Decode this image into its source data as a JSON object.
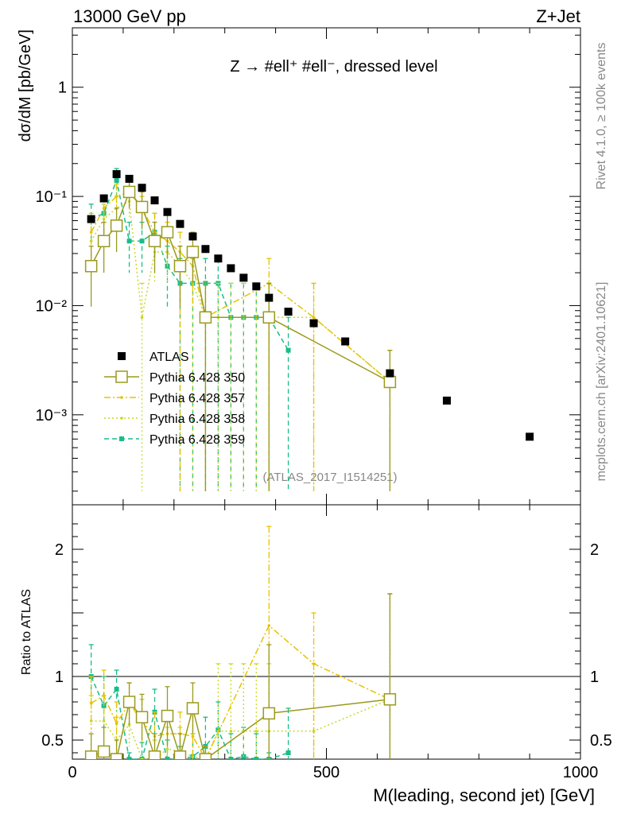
{
  "header": {
    "left_label": "13000 GeV pp",
    "right_label": "Z+Jet"
  },
  "side_labels": {
    "rivet": "Rivet 4.1.0, ≥ 100k events",
    "mcplots": "mcplots.cern.ch [arXiv:2401.10621]"
  },
  "chart_data": {
    "type": "scatter",
    "title": "Z → #ell⁺ #ell⁻, dressed level",
    "analysis_id": "(ATLAS_2017_I1514251)",
    "xlabel": "M(leading, second jet) [GeV]",
    "ylabel": "dσ/dM [pb/GeV]",
    "ratio_ylabel": "Ratio to ATLAS",
    "xlim": [
      0,
      1000
    ],
    "ylim": [
      0.00015,
      3.5
    ],
    "ratio_ylim": [
      0.35,
      2.35
    ],
    "x_ticks": [
      "0",
      "500",
      "1000"
    ],
    "y_ticks": [
      "1",
      "10⁻¹",
      "10⁻²",
      "10⁻³"
    ],
    "ratio_y_ticks": [
      "0.5",
      "1",
      "2"
    ],
    "legend": [
      "ATLAS",
      "Pythia 6.428 350",
      "Pythia 6.428 357",
      "Pythia 6.428 358",
      "Pythia 6.428 359"
    ],
    "reference": {
      "name": "ATLAS",
      "color": "#000000",
      "x": [
        37,
        62,
        87,
        112,
        137,
        162,
        187,
        212,
        237,
        262,
        287,
        312,
        337,
        362,
        387,
        425,
        475,
        537,
        625,
        737,
        900
      ],
      "y": [
        0.062,
        0.096,
        0.16,
        0.145,
        0.12,
        0.092,
        0.072,
        0.056,
        0.043,
        0.033,
        0.027,
        0.022,
        0.018,
        0.015,
        0.0118,
        0.0088,
        0.0069,
        0.0047,
        0.0024,
        0.00135,
        0.00063
      ]
    },
    "series": [
      {
        "name": "Pythia 6.428 350",
        "color": "#9a9a1e",
        "style": "solid",
        "marker": "open-square",
        "x": [
          37,
          62,
          87,
          112,
          137,
          162,
          187,
          212,
          237,
          262,
          387,
          625
        ],
        "y": [
          0.023,
          0.039,
          0.054,
          0.11,
          0.08,
          0.039,
          0.047,
          0.023,
          0.031,
          0.0078,
          0.0078,
          0.002
        ],
        "err_hi": [
          0.035,
          0.058,
          0.078,
          0.14,
          0.11,
          0.058,
          0.069,
          0.035,
          0.047,
          0.016,
          0.016,
          0.0039
        ],
        "err_lo": [
          0.0098,
          0.02,
          0.031,
          0.078,
          0.05,
          0.02,
          0.027,
          0.0098,
          0.016,
          0.0002,
          0.0002,
          0.0002
        ],
        "ratio": [
          0.37,
          0.41,
          0.34,
          0.8,
          0.68,
          0.37,
          0.69,
          0.37,
          0.75,
          0.23,
          0.71,
          0.82
        ],
        "ratio_err_hi": [
          0.55,
          0.6,
          0.5,
          0.95,
          0.86,
          0.55,
          0.92,
          0.55,
          0.95,
          0.45,
          1.25,
          1.65
        ],
        "ratio_err_lo": [
          0.2,
          0.2,
          0.18,
          0.62,
          0.5,
          0.2,
          0.45,
          0.2,
          0.55,
          0.01,
          0.15,
          0.01
        ]
      },
      {
        "name": "Pythia 6.428 357",
        "color": "#e6c300",
        "style": "dashdot",
        "marker": "dot",
        "x": [
          37,
          62,
          87,
          112,
          137,
          162,
          187,
          212,
          237,
          262,
          387,
          475,
          625
        ],
        "y": [
          0.047,
          0.078,
          0.1,
          0.11,
          0.078,
          0.047,
          0.039,
          0.031,
          0.023,
          0.0078,
          0.016,
          0.0078,
          0.002
        ],
        "err_hi": [
          0.07,
          0.1,
          0.13,
          0.14,
          0.1,
          0.07,
          0.058,
          0.047,
          0.035,
          0.016,
          0.027,
          0.016,
          0.0039
        ],
        "err_lo": [
          0.027,
          0.055,
          0.075,
          0.08,
          0.055,
          0.027,
          0.02,
          0.0002,
          0.0098,
          0.0002,
          0.0002,
          0.0002,
          0.0002
        ],
        "ratio": [
          0.79,
          0.85,
          0.63,
          0.79,
          0.65,
          0.53,
          0.55,
          0.55,
          0.53,
          0.23,
          1.4,
          1.1,
          0.82
        ],
        "ratio_err_hi": [
          1.0,
          1.05,
          0.8,
          0.95,
          0.82,
          0.72,
          0.72,
          0.72,
          0.72,
          0.45,
          2.18,
          1.5,
          1.65
        ],
        "ratio_err_lo": [
          0.58,
          0.65,
          0.45,
          0.62,
          0.48,
          0.35,
          0.38,
          0.38,
          0.35,
          0.01,
          0.6,
          0.3,
          0.01
        ]
      },
      {
        "name": "Pythia 6.428 358",
        "color": "#c8d82a",
        "style": "dotted",
        "marker": "dot",
        "x": [
          37,
          62,
          87,
          112,
          137,
          162,
          187,
          212,
          237,
          262,
          287,
          312,
          337,
          362,
          387,
          475,
          625
        ],
        "y": [
          0.039,
          0.062,
          0.078,
          0.09,
          0.0078,
          0.031,
          0.031,
          0.023,
          0.016,
          0.0078,
          0.0078,
          0.0078,
          0.0078,
          0.0078,
          0.0078,
          0.0078,
          0.002
        ],
        "err_hi": [
          0.058,
          0.085,
          0.1,
          0.12,
          0.016,
          0.047,
          0.047,
          0.035,
          0.027,
          0.016,
          0.016,
          0.016,
          0.016,
          0.016,
          0.016,
          0.016,
          0.0039
        ],
        "err_lo": [
          0.02,
          0.04,
          0.055,
          0.065,
          0.0002,
          0.016,
          0.016,
          0.0098,
          0.0002,
          0.0002,
          0.0002,
          0.0002,
          0.0002,
          0.0002,
          0.0002,
          0.0002,
          0.0002
        ],
        "ratio": [
          0.65,
          0.65,
          0.5,
          0.62,
          0.07,
          0.34,
          0.43,
          0.41,
          0.37,
          0.24,
          0.57,
          0.57,
          0.57,
          0.57,
          0.57,
          0.57,
          0.82
        ],
        "ratio_err_hi": [
          0.85,
          0.85,
          0.68,
          0.8,
          0.2,
          0.5,
          0.6,
          0.6,
          0.55,
          0.45,
          1.1,
          1.1,
          1.1,
          1.1,
          1.1,
          1.1,
          1.65
        ],
        "ratio_err_lo": [
          0.45,
          0.45,
          0.32,
          0.45,
          0.01,
          0.18,
          0.25,
          0.2,
          0.01,
          0.01,
          0.01,
          0.01,
          0.01,
          0.01,
          0.01,
          0.01,
          0.01
        ]
      },
      {
        "name": "Pythia 6.428 359",
        "color": "#1abc8a",
        "style": "dashed",
        "marker": "filled-square",
        "x": [
          37,
          62,
          87,
          112,
          137,
          162,
          187,
          212,
          237,
          262,
          287,
          312,
          337,
          362,
          387,
          425
        ],
        "y": [
          0.062,
          0.07,
          0.14,
          0.039,
          0.039,
          0.047,
          0.023,
          0.016,
          0.016,
          0.016,
          0.016,
          0.0078,
          0.0078,
          0.0078,
          0.0078,
          0.0039
        ],
        "err_hi": [
          0.085,
          0.1,
          0.18,
          0.058,
          0.058,
          0.07,
          0.035,
          0.027,
          0.027,
          0.027,
          0.027,
          0.016,
          0.016,
          0.016,
          0.016,
          0.0078
        ],
        "err_lo": [
          0.04,
          0.045,
          0.1,
          0.02,
          0.02,
          0.027,
          0.0098,
          0.0002,
          0.0002,
          0.0002,
          0.0002,
          0.0002,
          0.0002,
          0.0002,
          0.0002,
          0.0002
        ],
        "ratio": [
          1.0,
          0.77,
          0.9,
          0.28,
          0.33,
          0.72,
          0.32,
          0.29,
          0.37,
          0.45,
          0.58,
          0.35,
          0.37,
          0.33,
          0.22,
          0.4
        ],
        "ratio_err_hi": [
          1.25,
          1.0,
          1.05,
          0.4,
          0.48,
          0.9,
          0.5,
          0.45,
          0.55,
          0.68,
          0.8,
          0.55,
          0.6,
          0.55,
          0.4,
          0.75
        ],
        "ratio_err_lo": [
          0.75,
          0.55,
          0.72,
          0.15,
          0.18,
          0.55,
          0.15,
          0.01,
          0.01,
          0.01,
          0.01,
          0.01,
          0.01,
          0.01,
          0.01,
          0.01
        ]
      }
    ]
  }
}
